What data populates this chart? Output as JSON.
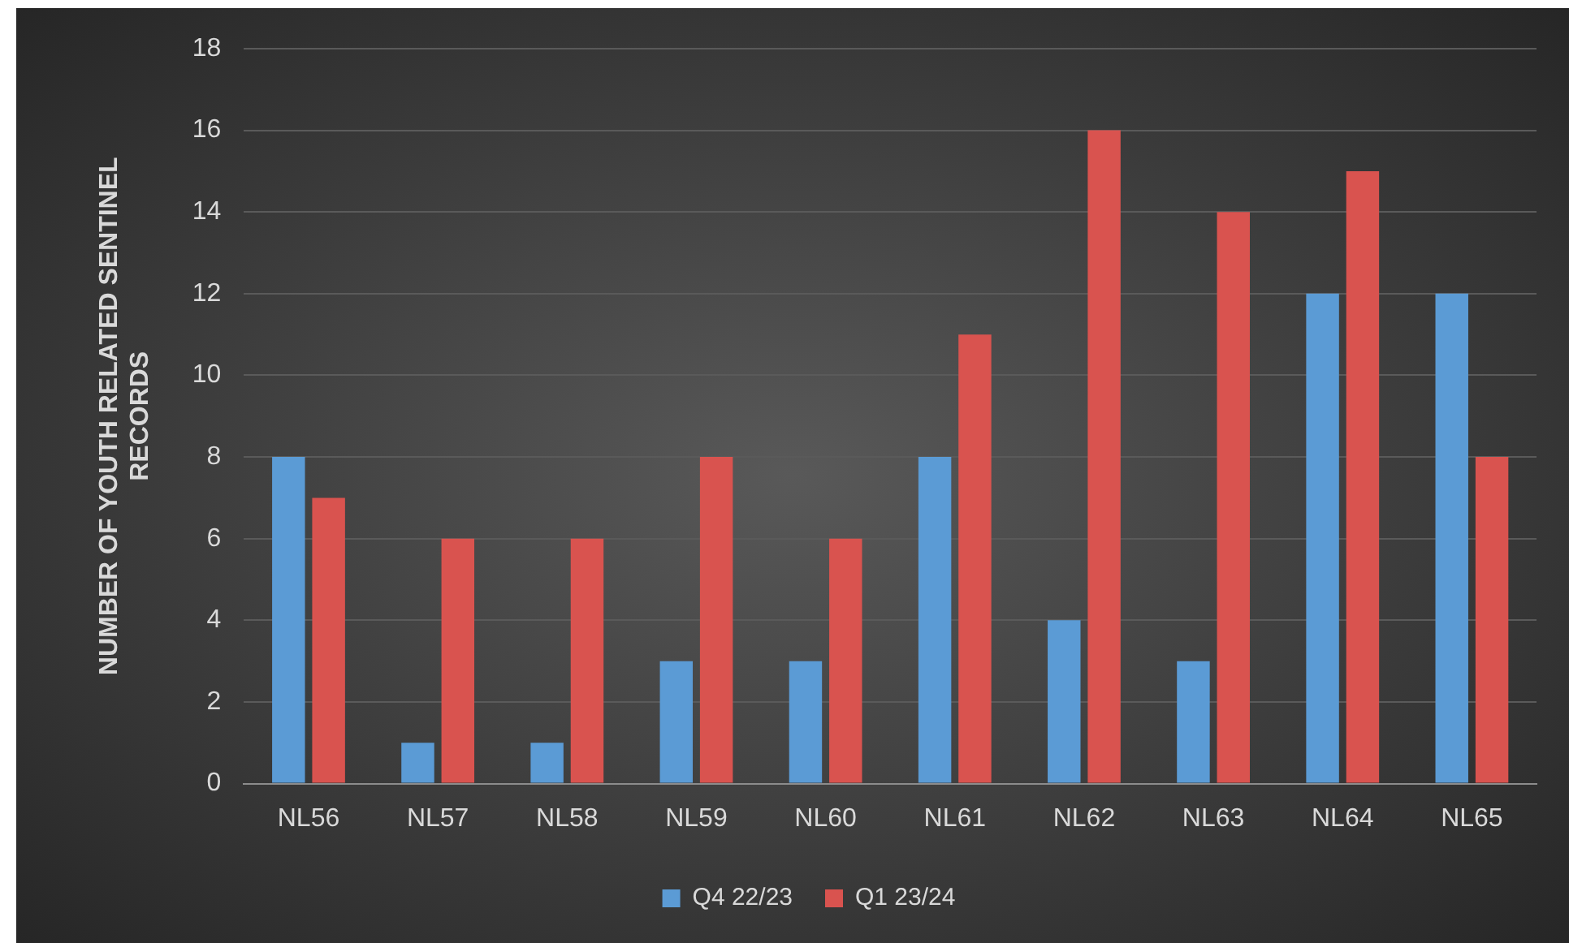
{
  "chart_data": {
    "type": "bar",
    "ylabel": "NUMBER OF YOUTH RELATED SENTINEL RECORDS",
    "categories": [
      "NL56",
      "NL57",
      "NL58",
      "NL59",
      "NL60",
      "NL61",
      "NL62",
      "NL63",
      "NL64",
      "NL65"
    ],
    "series": [
      {
        "name": "Q4 22/23",
        "color": "#5b9bd5",
        "values": [
          8,
          1,
          1,
          3,
          3,
          8,
          4,
          3,
          12,
          12
        ]
      },
      {
        "name": "Q1 23/24",
        "color": "#d9534f",
        "values": [
          7,
          6,
          6,
          8,
          6,
          11,
          16,
          14,
          15,
          8
        ]
      }
    ],
    "ylim": [
      0,
      18
    ],
    "yticks": [
      0,
      2,
      4,
      6,
      8,
      10,
      12,
      14,
      16,
      18
    ],
    "grid": "y",
    "legend": "bottom"
  }
}
